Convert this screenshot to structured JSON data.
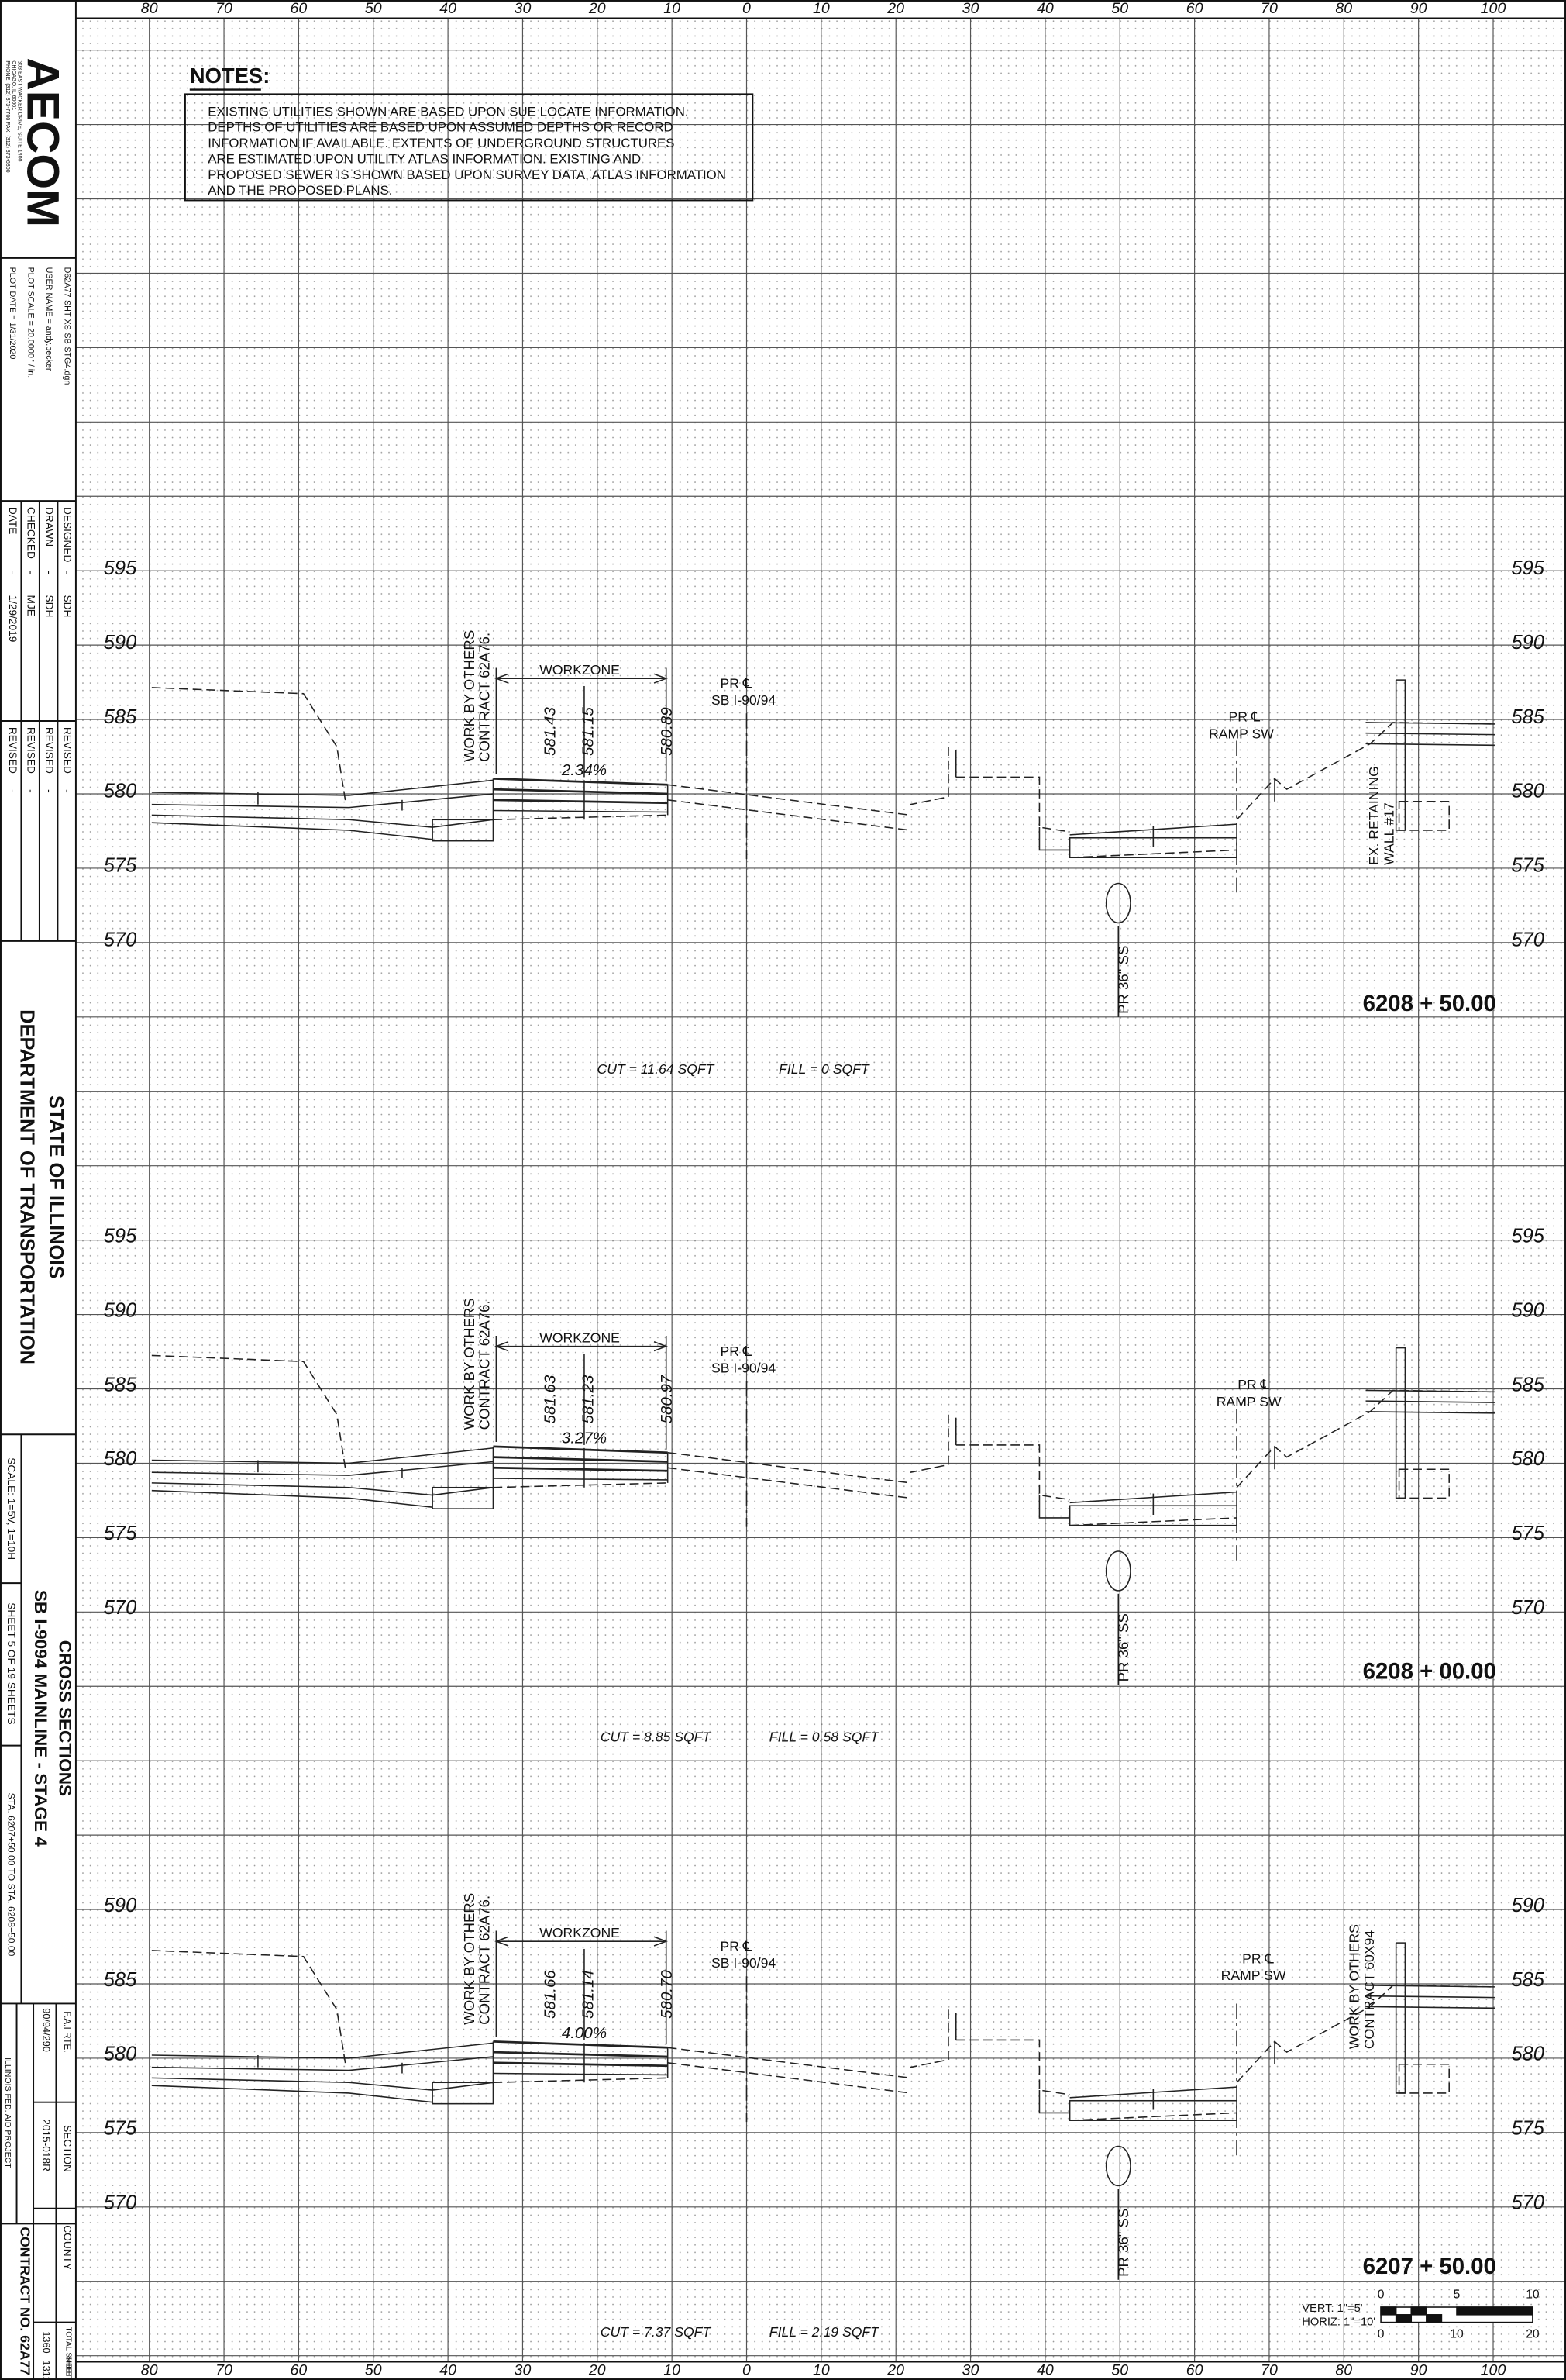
{
  "title_block": {
    "logo": "AECOM",
    "address": [
      "303 EAST WACKER DRIVE, SUITE 1400",
      "CHICAGO, IL 60601",
      "PHONE: (312) 373-7700 FAX: (312) 373-6800"
    ],
    "file": "D62A77-SHT-XS-SB-STG4.dgn",
    "user_name": "USER NAME = andy.becker",
    "plot_scale": "PLOT SCALE = 20.0000 ' / in.",
    "plot_date": "PLOT DATE = 1/31/2020",
    "people": [
      [
        "DESIGNED",
        "-",
        "SDH"
      ],
      [
        "DRAWN",
        "-",
        "SDH"
      ],
      [
        "CHECKED",
        "-",
        "MJE"
      ],
      [
        "DATE",
        "-",
        "1/29/2019"
      ]
    ],
    "revisions": [
      [
        "REVISED",
        "-"
      ],
      [
        "REVISED",
        "-"
      ],
      [
        "REVISED",
        "-"
      ],
      [
        "REVISED",
        "-"
      ]
    ],
    "agency": [
      "STATE OF ILLINOIS",
      "DEPARTMENT OF TRANSPORTATION"
    ],
    "sheet_title": [
      "CROSS SECTIONS",
      "SB I-9094 MAINLINE - STAGE 4"
    ],
    "scale": "SCALE: 1=5V, 1=10H",
    "sheet": "SHEET 5 OF 19 SHEETS",
    "stations": "STA. 6207+50.00 TO STA. 6208+50.00",
    "route_header": "F.A.I RTE.",
    "route": "90/94/290",
    "section_header": "SECTION",
    "section": "2015-018R",
    "county_header": "COUNTY",
    "total_sheets_header": "TOTAL SHEETS",
    "total_sheets": "1360",
    "sheet_no_header": "SHEET NO.",
    "sheet_no": "1312",
    "contract": "CONTRACT NO. 62A77",
    "project": "ILLINOIS FED. AID PROJECT"
  },
  "notes": {
    "title": "NOTES:",
    "lines": [
      "EXISTING UTILITIES SHOWN ARE BASED UPON SUE LOCATE INFORMATION.",
      "DEPTHS OF UTILITIES ARE BASED UPON ASSUMED DEPTHS OR RECORD",
      "INFORMATION IF AVAILABLE.  EXTENTS OF UNDERGROUND STRUCTURES",
      "ARE ESTIMATED UPON UTILITY ATLAS INFORMATION.  EXISTING AND",
      "PROPOSED SEWER IS SHOWN BASED UPON SURVEY DATA, ATLAS INFORMATION",
      "AND THE PROPOSED PLANS."
    ]
  },
  "offset_labels": [
    80,
    70,
    60,
    50,
    40,
    30,
    20,
    10,
    0,
    10,
    20,
    30,
    40,
    50,
    60,
    70,
    80,
    90,
    100
  ],
  "sections": [
    {
      "elevations": [
        595,
        590,
        585,
        580,
        575,
        570
      ],
      "work_by_others": [
        "WORK BY OTHERS",
        "CONTRACT 62A76."
      ],
      "workzone": "WORKZONE",
      "mainline_cl": [
        "PR ℄",
        "SB I-90/94"
      ],
      "elevation_labels": [
        "581.43",
        "581.15",
        "580.89"
      ],
      "grade": "2.34%",
      "ramp_cl": [
        "PR ℄",
        "RAMP SW"
      ],
      "callout": [
        "EX. RETAINING",
        "WALL #17"
      ],
      "sewer": "PR 36\" SS",
      "station": "6208 + 50.00",
      "cut": "CUT = 11.64 SQFT",
      "fill": "FILL = 0 SQFT"
    },
    {
      "elevations": [
        595,
        590,
        585,
        580,
        575,
        570
      ],
      "work_by_others": [
        "WORK BY OTHERS",
        "CONTRACT 62A76."
      ],
      "workzone": "WORKZONE",
      "mainline_cl": [
        "PR ℄",
        "SB I-90/94"
      ],
      "elevation_labels": [
        "581.63",
        "581.23",
        "580.97"
      ],
      "grade": "3.27%",
      "ramp_cl": [
        "PR ℄",
        "RAMP SW"
      ],
      "sewer": "PR 36\" SS",
      "station": "6208 + 00.00",
      "cut": "CUT = 8.85 SQFT",
      "fill": "FILL = 0.58 SQFT"
    },
    {
      "elevations": [
        590,
        585,
        580,
        575,
        570
      ],
      "work_by_others": [
        "WORK BY OTHERS",
        "CONTRACT 62A76."
      ],
      "workzone": "WORKZONE",
      "mainline_cl": [
        "PR ℄",
        "SB I-90/94"
      ],
      "elevation_labels": [
        "581.66",
        "581.14",
        "580.70"
      ],
      "grade": "4.00%",
      "ramp_cl": [
        "PR ℄",
        "RAMP SW"
      ],
      "callout": [
        "WORK BY OTHERS",
        "CONTRACT 60X94"
      ],
      "sewer": "PR 36\" SS",
      "station": "6207 + 50.00",
      "cut": "CUT = 7.37 SQFT",
      "fill": "FILL = 2.19 SQFT"
    }
  ],
  "scale_bar": {
    "vert": "VERT: 1\"=5'",
    "horiz": "HORIZ: 1\"=10'",
    "vert_ticks": [
      0,
      5,
      10
    ],
    "horiz_ticks": [
      0,
      10,
      20
    ]
  }
}
